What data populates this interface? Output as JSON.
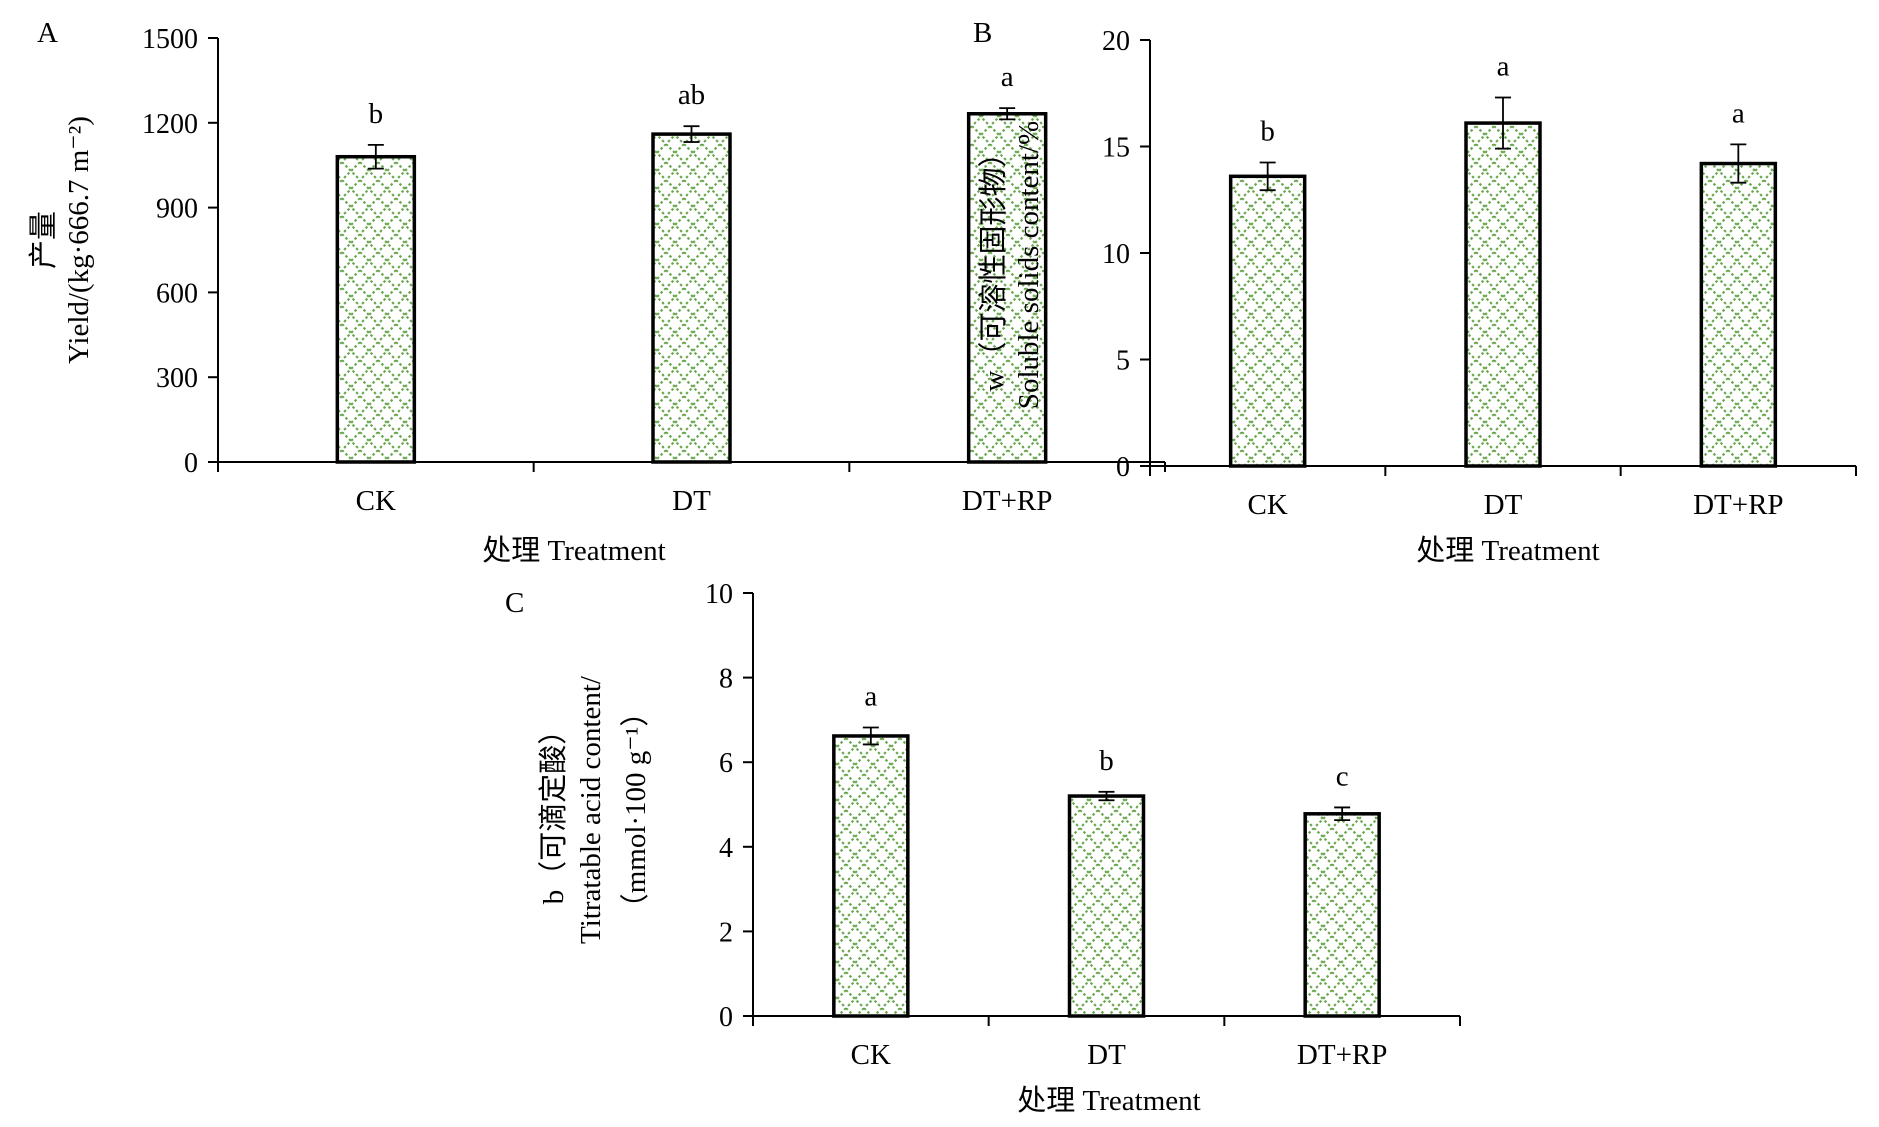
{
  "chart_data": [
    {
      "panel": "A",
      "type": "bar",
      "categories": [
        "CK",
        "DT",
        "DT+RP"
      ],
      "values": [
        1080,
        1160,
        1232
      ],
      "errors": [
        42,
        28,
        20
      ],
      "significance": [
        "b",
        "ab",
        "a"
      ],
      "ylim": [
        0,
        1500
      ],
      "yticks": [
        0,
        300,
        600,
        900,
        1200,
        1500
      ],
      "ytick_labels": [
        "0",
        "300",
        "600",
        "900",
        "1200",
        "1500"
      ],
      "xlabel": "处理 Treatment",
      "ylabel_lines": [
        "产量",
        "Yield/(kg·666.7 m⁻²)"
      ],
      "bar_fill": "#6aa84f",
      "bar_pattern": "green crosshatch",
      "bar_edge": "#000000"
    },
    {
      "panel": "B",
      "type": "bar",
      "categories": [
        "CK",
        "DT",
        "DT+RP"
      ],
      "values": [
        13.6,
        16.1,
        14.2
      ],
      "errors": [
        0.65,
        1.2,
        0.9
      ],
      "significance": [
        "b",
        "a",
        "a"
      ],
      "ylim": [
        0,
        20
      ],
      "yticks": [
        0,
        5,
        10,
        15,
        20
      ],
      "ytick_labels": [
        "0",
        "5",
        "10",
        "15",
        "20"
      ],
      "xlabel": "处理 Treatment",
      "ylabel_lines": [
        "w（可溶性固形物）",
        "Soluble solids content/%"
      ],
      "bar_fill": "#6aa84f",
      "bar_pattern": "green crosshatch",
      "bar_edge": "#000000"
    },
    {
      "panel": "C",
      "type": "bar",
      "categories": [
        "CK",
        "DT",
        "DT+RP"
      ],
      "values": [
        6.62,
        5.2,
        4.78
      ],
      "errors": [
        0.2,
        0.1,
        0.15
      ],
      "significance": [
        "a",
        "b",
        "c"
      ],
      "ylim": [
        0,
        10
      ],
      "yticks": [
        0,
        2,
        4,
        6,
        8,
        10
      ],
      "ytick_labels": [
        "0",
        "2",
        "4",
        "6",
        "8",
        "10"
      ],
      "xlabel": "处理 Treatment",
      "ylabel_lines": [
        "b（可滴定酸）",
        "Titratable acid content/",
        "（mmol·100 g⁻¹）"
      ],
      "bar_fill": "#6aa84f",
      "bar_pattern": "green crosshatch",
      "bar_edge": "#000000"
    }
  ]
}
